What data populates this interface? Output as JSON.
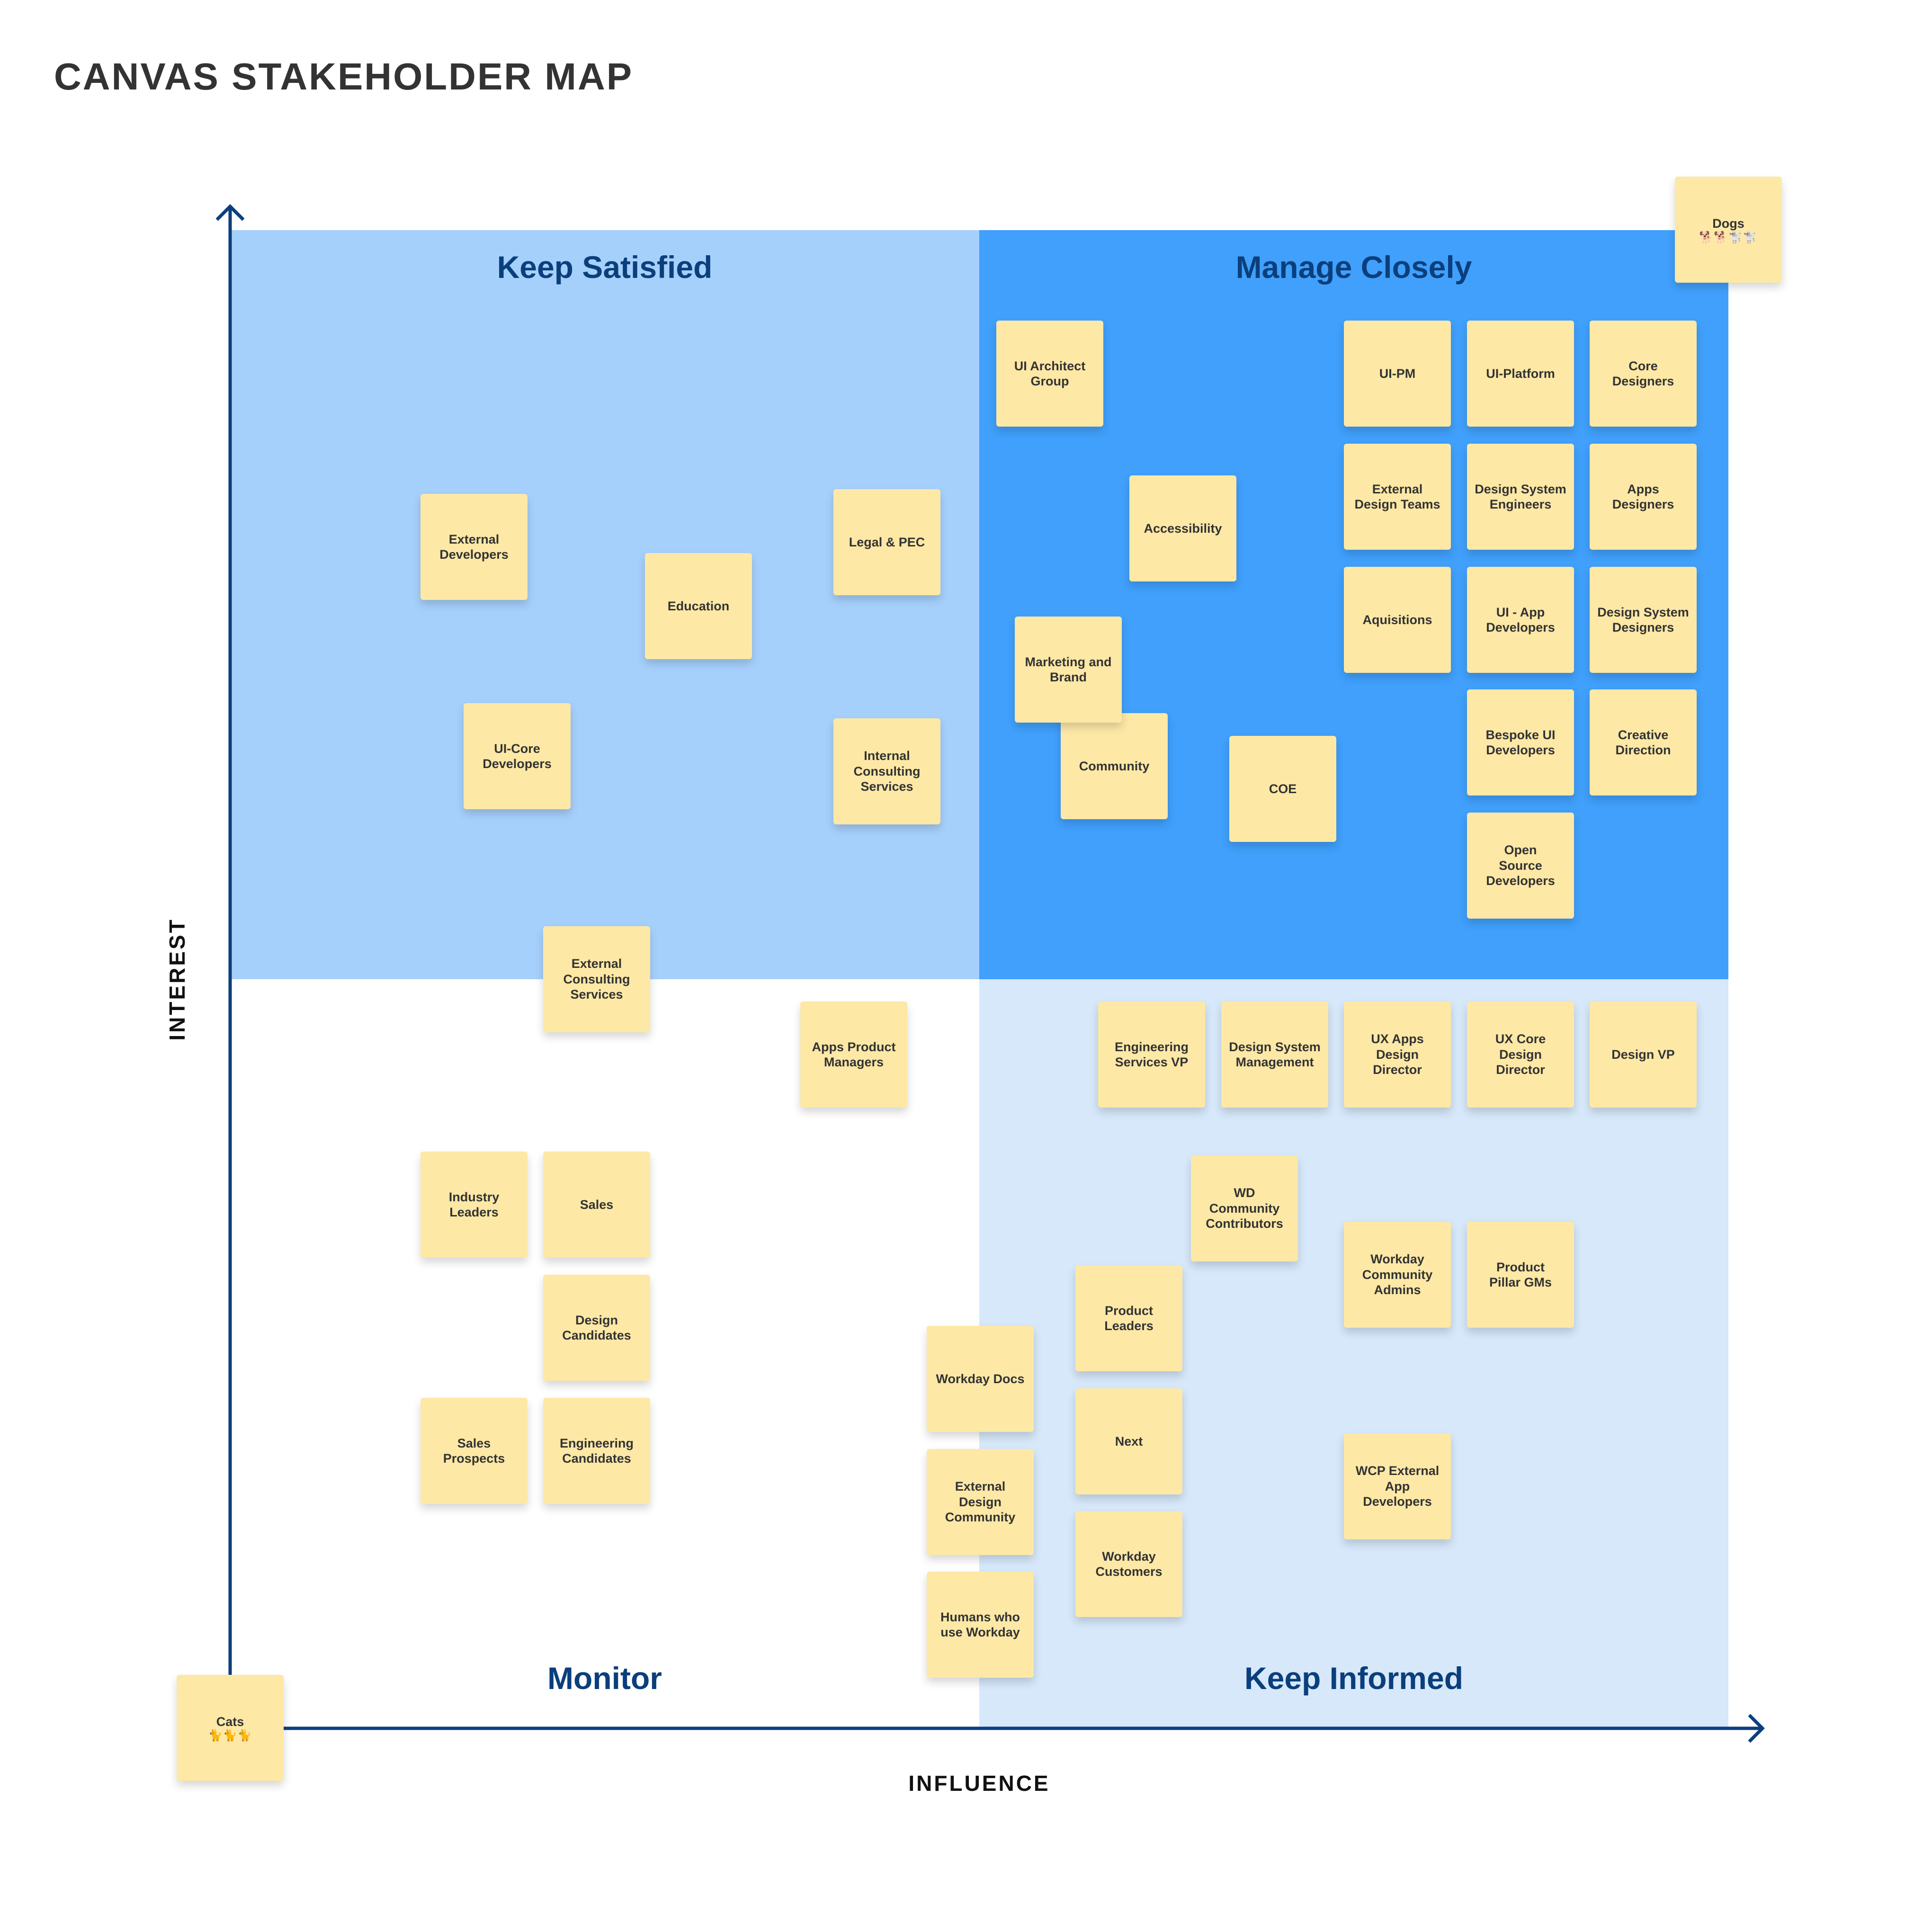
{
  "title": "CANVAS STAKEHOLDER MAP",
  "axes": {
    "x_label": "INFLUENCE",
    "y_label": "INTEREST"
  },
  "quadrants": {
    "keep_satisfied": "Keep Satisfied",
    "manage_closely": "Manage Closely",
    "monitor": "Monitor",
    "keep_informed": "Keep Informed"
  },
  "colors": {
    "keep_satisfied": "#a6d0fc",
    "manage_closely": "#40a0fc",
    "monitor": "#ffffff",
    "keep_informed": "#d6e8fa",
    "sticky_note": "#fde8a6",
    "axis": "#0b3f7c",
    "quadrant_label": "#0b3f7c"
  },
  "notes": {
    "dogs": {
      "label": "Dogs",
      "emoji": "🐕🐕🐩🐩"
    },
    "cats": {
      "label": "Cats",
      "emoji": "🐈🐈🐈"
    },
    "ui_architect_group": "UI Architect\nGroup",
    "ui_pm": "UI-PM",
    "ui_platform": "UI-Platform",
    "core_designers": "Core\nDesigners",
    "external_design_teams": "External\nDesign Teams",
    "design_system_engineers": "Design System\nEngineers",
    "apps_designers": "Apps\nDesigners",
    "accessibility": "Accessibility",
    "aquisitions": "Aquisitions",
    "ui_app_developers": "UI - App\nDevelopers",
    "design_system_designers": "Design System\nDesigners",
    "marketing_and_brand": "Marketing and\nBrand",
    "community": "Community",
    "coe": "COE",
    "bespoke_ui_developers": "Bespoke UI\nDevelopers",
    "creative_direction": "Creative\nDirection",
    "open_source_developers": "Open\nSource\nDevelopers",
    "external_developers": "External\nDevelopers",
    "education": "Education",
    "legal_pec": "Legal & PEC",
    "ui_core_developers": "UI-Core\nDevelopers",
    "internal_consulting_services": "Internal\nConsulting\nServices",
    "external_consulting_services": "External\nConsulting\nServices",
    "apps_product_managers": "Apps Product\nManagers",
    "industry_leaders": "Industry\nLeaders",
    "sales": "Sales",
    "design_candidates": "Design\nCandidates",
    "sales_prospects": "Sales\nProspects",
    "engineering_candidates": "Engineering\nCandidates",
    "workday_docs": "Workday Docs",
    "external_design_community": "External\nDesign\nCommunity",
    "humans_who_use_workday": "Humans who\nuse Workday",
    "engineering_services_vp": "Engineering\nServices VP",
    "design_system_management": "Design System\nManagement",
    "ux_apps_design_director": "UX Apps\nDesign\nDirector",
    "ux_core_design_director": "UX Core\nDesign\nDirector",
    "design_vp": "Design VP",
    "wd_community_contributors": "WD\nCommunity\nContributors",
    "workday_community_admins": "Workday\nCommunity\nAdmins",
    "product_pillar_gms": "Product\nPillar GMs",
    "product_leaders": "Product\nLeaders",
    "next": "Next",
    "workday_customers": "Workday\nCustomers",
    "wcp_external_app_developers": "WCP External\nApp\nDevelopers"
  }
}
